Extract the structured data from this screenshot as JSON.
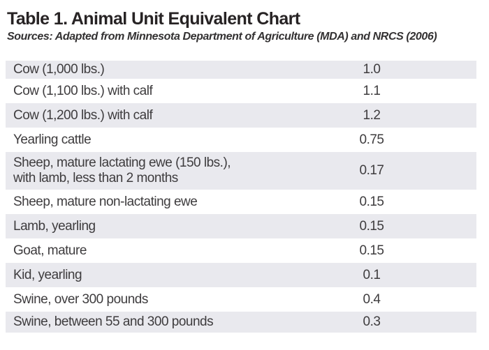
{
  "header": {
    "title": "Table 1. Animal Unit Equivalent Chart",
    "sources": "Sources: Adapted from Minnesota Department of Agriculture (MDA) and NRCS (2006)"
  },
  "colors": {
    "row_shade": "#e9e9ee",
    "body_text": "#3e3c3e",
    "title_text": "#272324",
    "background": "#ffffff"
  },
  "table": {
    "rows": [
      {
        "label": "Cow (1,000 lbs.)",
        "value": "1.0"
      },
      {
        "label": "Cow (1,100 lbs.) with calf",
        "value": "1.1"
      },
      {
        "label": "Cow (1,200 lbs.) with calf",
        "value": "1.2"
      },
      {
        "label": "Yearling cattle",
        "value": "0.75"
      },
      {
        "label": "Sheep, mature lactating ewe (150 lbs.),\nwith lamb, less than 2 months",
        "value": "0.17"
      },
      {
        "label": "Sheep, mature non-lactating ewe",
        "value": "0.15"
      },
      {
        "label": "Lamb, yearling",
        "value": "0.15"
      },
      {
        "label": "Goat, mature",
        "value": "0.15"
      },
      {
        "label": "Kid, yearling",
        "value": "0.1"
      },
      {
        "label": "Swine, over 300 pounds",
        "value": "0.4"
      },
      {
        "label": "Swine, between 55 and 300 pounds",
        "value": "0.3"
      }
    ]
  }
}
